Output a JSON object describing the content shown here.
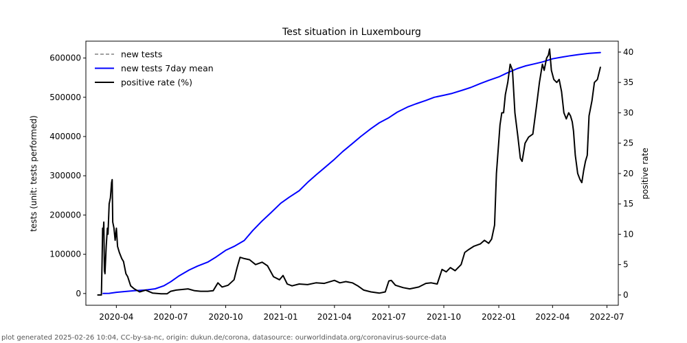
{
  "chart_data": {
    "type": "line",
    "title": "Test situation in Luxembourg",
    "ylabel_left": "tests (unit: tests performed)",
    "ylabel_right": "positive rate",
    "x_range": [
      "2020-02-10",
      "2022-07-20"
    ],
    "x_ticks": [
      "2020-04",
      "2020-07",
      "2020-10",
      "2021-01",
      "2021-04",
      "2021-07",
      "2021-10",
      "2022-01",
      "2022-04",
      "2022-07"
    ],
    "y_left_range": [
      -30000,
      643000
    ],
    "y_left_ticks": [
      "0",
      "100000",
      "200000",
      "300000",
      "400000",
      "500000",
      "600000"
    ],
    "y_right_range": [
      -1.7,
      41.8
    ],
    "y_right_ticks": [
      "0",
      "5",
      "10",
      "15",
      "20",
      "25",
      "30",
      "35",
      "40"
    ],
    "legend": [
      {
        "label": "new tests",
        "style": "dashed",
        "color": "#808080"
      },
      {
        "label": "new tests 7day mean",
        "style": "solid",
        "color": "#0000ff"
      },
      {
        "label": "positive rate (%)",
        "style": "solid",
        "color": "#000000"
      }
    ],
    "legend_position": "top-left",
    "series": [
      {
        "name": "new tests 7day mean",
        "axis": "left",
        "color": "#0000ff",
        "points": [
          [
            "2020-03-10",
            0
          ],
          [
            "2020-03-20",
            500
          ],
          [
            "2020-04-01",
            3000
          ],
          [
            "2020-04-15",
            5000
          ],
          [
            "2020-05-01",
            7000
          ],
          [
            "2020-05-20",
            9000
          ],
          [
            "2020-06-05",
            12000
          ],
          [
            "2020-06-20",
            20000
          ],
          [
            "2020-07-01",
            30000
          ],
          [
            "2020-07-15",
            45000
          ],
          [
            "2020-08-01",
            60000
          ],
          [
            "2020-08-15",
            70000
          ],
          [
            "2020-09-01",
            80000
          ],
          [
            "2020-09-15",
            93000
          ],
          [
            "2020-10-01",
            110000
          ],
          [
            "2020-10-15",
            120000
          ],
          [
            "2020-11-01",
            135000
          ],
          [
            "2020-11-15",
            160000
          ],
          [
            "2020-12-01",
            185000
          ],
          [
            "2020-12-15",
            205000
          ],
          [
            "2021-01-01",
            230000
          ],
          [
            "2021-01-15",
            245000
          ],
          [
            "2021-02-01",
            262000
          ],
          [
            "2021-02-15",
            283000
          ],
          [
            "2021-03-01",
            302000
          ],
          [
            "2021-03-15",
            320000
          ],
          [
            "2021-04-01",
            342000
          ],
          [
            "2021-04-15",
            362000
          ],
          [
            "2021-05-01",
            382000
          ],
          [
            "2021-05-15",
            400000
          ],
          [
            "2021-06-01",
            420000
          ],
          [
            "2021-06-15",
            435000
          ],
          [
            "2021-07-01",
            448000
          ],
          [
            "2021-07-15",
            462000
          ],
          [
            "2021-08-01",
            475000
          ],
          [
            "2021-08-15",
            483000
          ],
          [
            "2021-09-01",
            492000
          ],
          [
            "2021-09-15",
            500000
          ],
          [
            "2021-10-01",
            505000
          ],
          [
            "2021-10-15",
            510000
          ],
          [
            "2021-11-01",
            518000
          ],
          [
            "2021-11-15",
            525000
          ],
          [
            "2021-12-01",
            535000
          ],
          [
            "2021-12-15",
            543000
          ],
          [
            "2022-01-01",
            552000
          ],
          [
            "2022-01-15",
            562000
          ],
          [
            "2022-02-01",
            573000
          ],
          [
            "2022-02-15",
            580000
          ],
          [
            "2022-03-01",
            585000
          ],
          [
            "2022-03-15",
            590000
          ],
          [
            "2022-04-01",
            598000
          ],
          [
            "2022-04-15",
            602000
          ],
          [
            "2022-05-01",
            606000
          ],
          [
            "2022-05-15",
            609000
          ],
          [
            "2022-06-01",
            612000
          ],
          [
            "2022-06-20",
            614000
          ]
        ]
      },
      {
        "name": "positive rate (%)",
        "axis": "right",
        "color": "#000000",
        "points": [
          [
            "2020-03-01",
            0
          ],
          [
            "2020-03-05",
            0
          ],
          [
            "2020-03-07",
            0
          ],
          [
            "2020-03-08",
            5
          ],
          [
            "2020-03-09",
            11
          ],
          [
            "2020-03-10",
            10
          ],
          [
            "2020-03-11",
            12
          ],
          [
            "2020-03-12",
            4
          ],
          [
            "2020-03-13",
            3.5
          ],
          [
            "2020-03-15",
            8
          ],
          [
            "2020-03-17",
            11
          ],
          [
            "2020-03-18",
            10
          ],
          [
            "2020-03-20",
            15
          ],
          [
            "2020-03-22",
            16
          ],
          [
            "2020-03-24",
            18.5
          ],
          [
            "2020-03-25",
            19
          ],
          [
            "2020-03-26",
            12
          ],
          [
            "2020-03-28",
            11
          ],
          [
            "2020-03-30",
            9
          ],
          [
            "2020-04-01",
            11
          ],
          [
            "2020-04-03",
            8
          ],
          [
            "2020-04-06",
            7
          ],
          [
            "2020-04-10",
            6
          ],
          [
            "2020-04-13",
            5.5
          ],
          [
            "2020-04-17",
            3.5
          ],
          [
            "2020-04-20",
            3
          ],
          [
            "2020-04-25",
            1.5
          ],
          [
            "2020-05-01",
            1
          ],
          [
            "2020-05-10",
            0.5
          ],
          [
            "2020-05-20",
            0.8
          ],
          [
            "2020-06-01",
            0.3
          ],
          [
            "2020-06-15",
            0.2
          ],
          [
            "2020-06-25",
            0.2
          ],
          [
            "2020-07-01",
            0.6
          ],
          [
            "2020-07-10",
            0.8
          ],
          [
            "2020-07-20",
            0.9
          ],
          [
            "2020-07-30",
            1.0
          ],
          [
            "2020-08-10",
            0.7
          ],
          [
            "2020-08-20",
            0.6
          ],
          [
            "2020-09-01",
            0.6
          ],
          [
            "2020-09-10",
            0.7
          ],
          [
            "2020-09-18",
            2.0
          ],
          [
            "2020-09-25",
            1.3
          ],
          [
            "2020-10-05",
            1.6
          ],
          [
            "2020-10-15",
            2.5
          ],
          [
            "2020-10-20",
            4.5
          ],
          [
            "2020-10-25",
            6.2
          ],
          [
            "2020-11-01",
            6.0
          ],
          [
            "2020-11-10",
            5.8
          ],
          [
            "2020-11-20",
            5.0
          ],
          [
            "2020-12-01",
            5.4
          ],
          [
            "2020-12-10",
            4.8
          ],
          [
            "2020-12-20",
            3.0
          ],
          [
            "2020-12-30",
            2.5
          ],
          [
            "2021-01-05",
            3.2
          ],
          [
            "2021-01-12",
            1.8
          ],
          [
            "2021-01-20",
            1.5
          ],
          [
            "2021-02-01",
            1.8
          ],
          [
            "2021-02-15",
            1.7
          ],
          [
            "2021-03-01",
            2.0
          ],
          [
            "2021-03-15",
            1.9
          ],
          [
            "2021-04-01",
            2.4
          ],
          [
            "2021-04-10",
            2.0
          ],
          [
            "2021-04-20",
            2.2
          ],
          [
            "2021-05-01",
            2.0
          ],
          [
            "2021-05-10",
            1.5
          ],
          [
            "2021-05-20",
            0.8
          ],
          [
            "2021-06-01",
            0.5
          ],
          [
            "2021-06-15",
            0.3
          ],
          [
            "2021-06-25",
            0.5
          ],
          [
            "2021-07-01",
            2.3
          ],
          [
            "2021-07-05",
            2.4
          ],
          [
            "2021-07-12",
            1.6
          ],
          [
            "2021-07-25",
            1.2
          ],
          [
            "2021-08-05",
            1.0
          ],
          [
            "2021-08-20",
            1.3
          ],
          [
            "2021-09-01",
            1.9
          ],
          [
            "2021-09-10",
            2.0
          ],
          [
            "2021-09-20",
            1.8
          ],
          [
            "2021-09-28",
            4.2
          ],
          [
            "2021-10-05",
            3.8
          ],
          [
            "2021-10-12",
            4.5
          ],
          [
            "2021-10-20",
            4.0
          ],
          [
            "2021-10-30",
            5.0
          ],
          [
            "2021-11-05",
            7.0
          ],
          [
            "2021-11-12",
            7.5
          ],
          [
            "2021-11-20",
            8.0
          ],
          [
            "2021-12-01",
            8.4
          ],
          [
            "2021-12-08",
            9.0
          ],
          [
            "2021-12-15",
            8.5
          ],
          [
            "2021-12-20",
            9.2
          ],
          [
            "2021-12-25",
            11.5
          ],
          [
            "2021-12-28",
            20.0
          ],
          [
            "2021-12-31",
            24.0
          ],
          [
            "2022-01-03",
            28.0
          ],
          [
            "2022-01-06",
            30.0
          ],
          [
            "2022-01-09",
            30.0
          ],
          [
            "2022-01-12",
            33.0
          ],
          [
            "2022-01-16",
            35.0
          ],
          [
            "2022-01-20",
            38.0
          ],
          [
            "2022-01-24",
            37.0
          ],
          [
            "2022-01-28",
            30.0
          ],
          [
            "2022-02-02",
            26.0
          ],
          [
            "2022-02-06",
            22.5
          ],
          [
            "2022-02-09",
            22.0
          ],
          [
            "2022-02-14",
            25.0
          ],
          [
            "2022-02-20",
            26.0
          ],
          [
            "2022-02-27",
            26.5
          ],
          [
            "2022-03-05",
            31.0
          ],
          [
            "2022-03-10",
            35.0
          ],
          [
            "2022-03-15",
            38.0
          ],
          [
            "2022-03-18",
            37.0
          ],
          [
            "2022-03-22",
            39.0
          ],
          [
            "2022-03-25",
            39.5
          ],
          [
            "2022-03-27",
            40.5
          ],
          [
            "2022-03-30",
            37.0
          ],
          [
            "2022-04-03",
            35.5
          ],
          [
            "2022-04-08",
            35.0
          ],
          [
            "2022-04-12",
            35.5
          ],
          [
            "2022-04-16",
            33.5
          ],
          [
            "2022-04-20",
            30.0
          ],
          [
            "2022-04-24",
            29.0
          ],
          [
            "2022-04-28",
            30.0
          ],
          [
            "2022-05-01",
            29.5
          ],
          [
            "2022-05-04",
            28.5
          ],
          [
            "2022-05-06",
            27.0
          ],
          [
            "2022-05-09",
            23.0
          ],
          [
            "2022-05-13",
            20.0
          ],
          [
            "2022-05-17",
            19.0
          ],
          [
            "2022-05-20",
            18.5
          ],
          [
            "2022-05-23",
            20.5
          ],
          [
            "2022-05-26",
            22.0
          ],
          [
            "2022-05-29",
            23.0
          ],
          [
            "2022-06-01",
            29.5
          ],
          [
            "2022-06-06",
            32.0
          ],
          [
            "2022-06-10",
            35.0
          ],
          [
            "2022-06-15",
            35.5
          ],
          [
            "2022-06-20",
            37.5
          ]
        ]
      }
    ]
  },
  "footer": "plot generated 2025-02-26 10:04, CC-by-sa-nc, origin: dukun.de/corona, datasource: ourworldindata.org/coronavirus-source-data"
}
